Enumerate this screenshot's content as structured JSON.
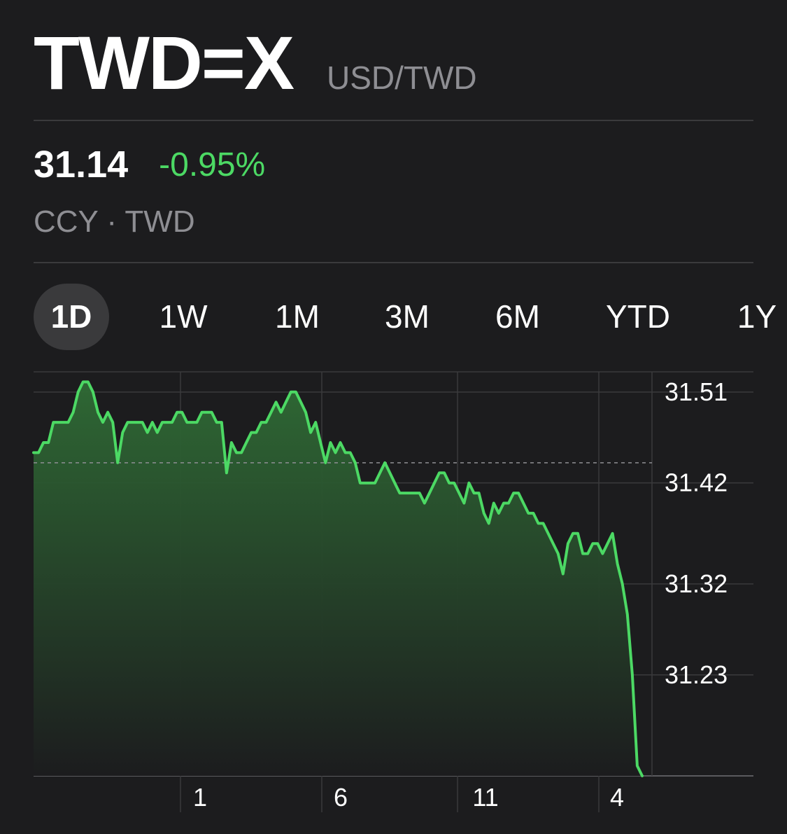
{
  "header": {
    "symbol": "TWD=X",
    "pair": "USD/TWD"
  },
  "quote": {
    "price": "31.14",
    "change": "-0.95%",
    "exchange": "CCY · TWD"
  },
  "ranges": [
    {
      "label": "1D",
      "active": true
    },
    {
      "label": "1W",
      "active": false
    },
    {
      "label": "1M",
      "active": false
    },
    {
      "label": "3M",
      "active": false
    },
    {
      "label": "6M",
      "active": false
    },
    {
      "label": "YTD",
      "active": false
    },
    {
      "label": "1Y",
      "active": false
    }
  ],
  "colors": {
    "background": "#1c1c1e",
    "accent_green": "#4cd964",
    "muted_text": "#8e8e93",
    "pill": "#3a3a3c"
  },
  "chart_data": {
    "type": "area",
    "ylim": [
      31.13,
      31.53
    ],
    "y_ticks": [
      "31.51",
      "31.42",
      "31.32",
      "31.23"
    ],
    "x_ticks": [
      "1",
      "6",
      "11",
      "4"
    ],
    "previous_close": 31.44,
    "grid": true,
    "values": [
      31.45,
      31.45,
      31.46,
      31.46,
      31.48,
      31.48,
      31.48,
      31.48,
      31.49,
      31.51,
      31.52,
      31.52,
      31.51,
      31.49,
      31.48,
      31.49,
      31.48,
      31.44,
      31.47,
      31.48,
      31.48,
      31.48,
      31.48,
      31.47,
      31.48,
      31.47,
      31.48,
      31.48,
      31.48,
      31.49,
      31.49,
      31.48,
      31.48,
      31.48,
      31.49,
      31.49,
      31.49,
      31.48,
      31.48,
      31.43,
      31.46,
      31.45,
      31.45,
      31.46,
      31.47,
      31.47,
      31.48,
      31.48,
      31.49,
      31.5,
      31.49,
      31.5,
      31.51,
      31.51,
      31.5,
      31.49,
      31.47,
      31.48,
      31.46,
      31.44,
      31.46,
      31.45,
      31.46,
      31.45,
      31.45,
      31.44,
      31.42,
      31.42,
      31.42,
      31.42,
      31.43,
      31.44,
      31.43,
      31.42,
      31.41,
      31.41,
      31.41,
      31.41,
      31.41,
      31.4,
      31.41,
      31.42,
      31.43,
      31.43,
      31.42,
      31.42,
      31.41,
      31.4,
      31.42,
      31.41,
      31.41,
      31.39,
      31.38,
      31.4,
      31.39,
      31.4,
      31.4,
      31.41,
      31.41,
      31.4,
      31.39,
      31.39,
      31.38,
      31.38,
      31.37,
      31.36,
      31.35,
      31.33,
      31.36,
      31.37,
      31.37,
      31.35,
      31.35,
      31.36,
      31.36,
      31.35,
      31.36,
      31.37,
      31.34,
      31.32,
      31.29,
      31.23,
      31.14,
      31.13
    ]
  }
}
